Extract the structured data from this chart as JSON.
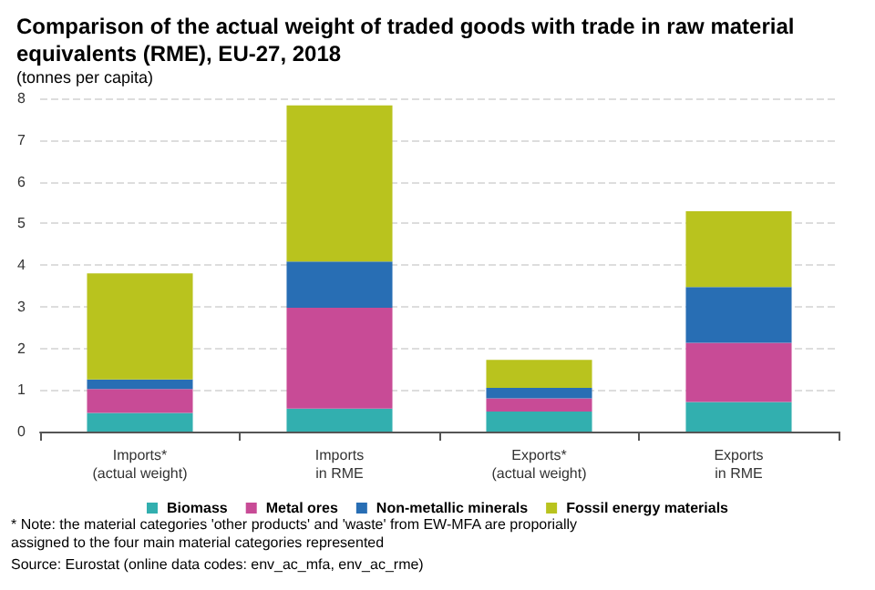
{
  "chart_data": {
    "type": "bar",
    "stacked": true,
    "title": "Comparison of the actual weight of traded goods with trade in raw material equivalents (RME), EU-27, 2018",
    "subtitle": "(tonnes per capita)",
    "categories": [
      "Imports*\n(actual weight)",
      "Imports\nin RME",
      "Exports*\n(actual weight)",
      "Exports\nin RME"
    ],
    "series": [
      {
        "name": "Biomass",
        "color": "#32afaf",
        "values": [
          0.45,
          0.55,
          0.48,
          0.71
        ]
      },
      {
        "name": "Metal ores",
        "color": "#c84b96",
        "values": [
          0.57,
          2.42,
          0.32,
          1.42
        ]
      },
      {
        "name": "Non-metallic minerals",
        "color": "#286eb4",
        "values": [
          0.23,
          1.11,
          0.25,
          1.34
        ]
      },
      {
        "name": "Fossil energy materials",
        "color": "#b9c31e",
        "values": [
          2.55,
          3.75,
          0.67,
          1.82
        ]
      }
    ],
    "ylim": [
      0,
      8
    ],
    "yticks": [
      0,
      1,
      2,
      3,
      4,
      5,
      6,
      7,
      8
    ],
    "grid": "y",
    "legend": "bottom",
    "annotations": [
      "* Note: the material categories 'other products' and 'waste' from EW-MFA are proporially assigned to the four main material categories represented",
      "Source: Eurostat (online data codes: env_ac_mfa, env_ac_rme)"
    ]
  }
}
